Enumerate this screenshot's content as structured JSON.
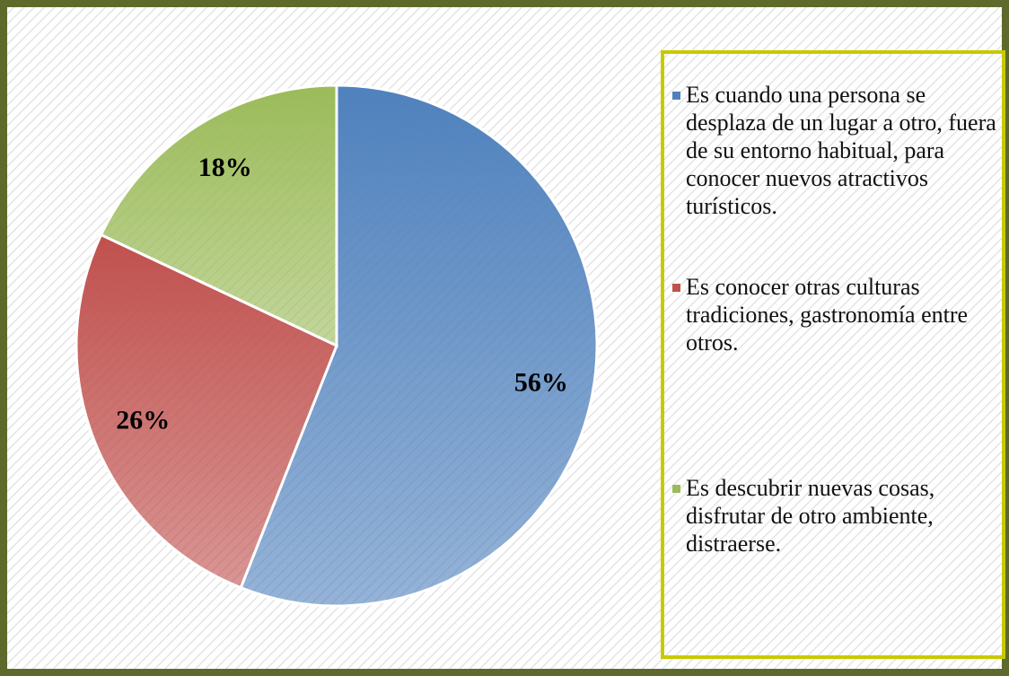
{
  "chart_data": {
    "type": "pie",
    "categories": [
      "Es cuando una persona se desplaza de un lugar a otro, fuera de su entorno habitual, para conocer nuevos atractivos turísticos.",
      "Es conocer otras culturas tradiciones, gastronomía entre otros.",
      "Es descubrir nuevas cosas, disfrutar de otro ambiente, distraerse."
    ],
    "values": [
      56,
      26,
      18
    ],
    "value_labels": [
      "56%",
      "26%",
      "18%"
    ],
    "colors": [
      "#4f81bd",
      "#c0504d",
      "#9bbb59"
    ],
    "legend": "right"
  }
}
